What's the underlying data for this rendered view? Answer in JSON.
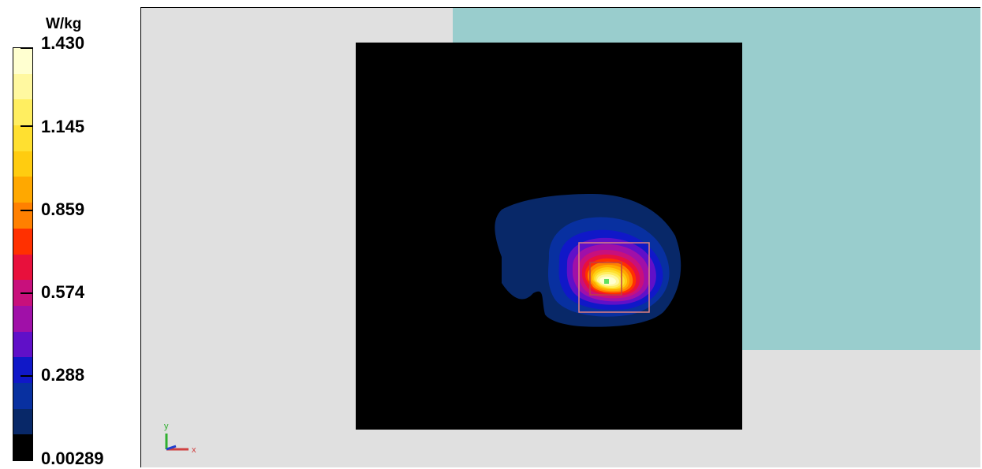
{
  "colorbar": {
    "unit": "W/kg",
    "tick_labels": [
      "1.430",
      "1.145",
      "0.859",
      "0.574",
      "0.288",
      "0.00289"
    ],
    "colors": [
      "#ffffd0",
      "#fff8a0",
      "#ffee60",
      "#ffe030",
      "#ffcc10",
      "#ffa800",
      "#ff8000",
      "#ff3000",
      "#e8103c",
      "#c8107c",
      "#a010a8",
      "#6010c8",
      "#1018c8",
      "#0830a0",
      "#082868",
      "#000000"
    ]
  },
  "viewport": {
    "background": "#e0e0e0",
    "phantom_color": "#99cdcd",
    "axes": {
      "y": "y",
      "x": "x"
    }
  },
  "chart_data": {
    "type": "heatmap",
    "title": "",
    "unit": "W/kg",
    "value_range": [
      0.00289,
      1.43
    ],
    "colorbar_ticks": [
      1.43,
      1.145,
      0.859,
      0.574,
      0.288,
      0.00289
    ],
    "peak_value": 1.43,
    "grid": false
  }
}
